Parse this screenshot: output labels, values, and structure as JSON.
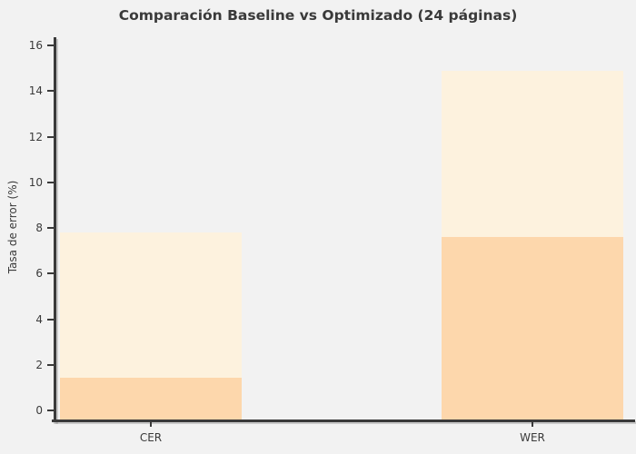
{
  "figure": {
    "background": "#f2f2f2",
    "text_color": "#3a3a3a"
  },
  "chart_data": {
    "type": "bar",
    "style": "overlay",
    "title": "Comparación Baseline vs Optimizado (24 páginas)",
    "xlabel": "",
    "ylabel": "Tasa de error (%)",
    "categories": [
      "CER",
      "WER"
    ],
    "series": [
      {
        "name": "Baseline",
        "values": [
          7.8,
          14.9
        ],
        "color": "#fdf2de"
      },
      {
        "name": "Optimizado",
        "values": [
          1.45,
          7.6
        ],
        "color": "#fdd7ac"
      }
    ],
    "ylim": [
      0,
      16
    ],
    "yticks": [
      0,
      2,
      4,
      6,
      8,
      10,
      12,
      14,
      16
    ],
    "grid": false,
    "legend": "none"
  }
}
